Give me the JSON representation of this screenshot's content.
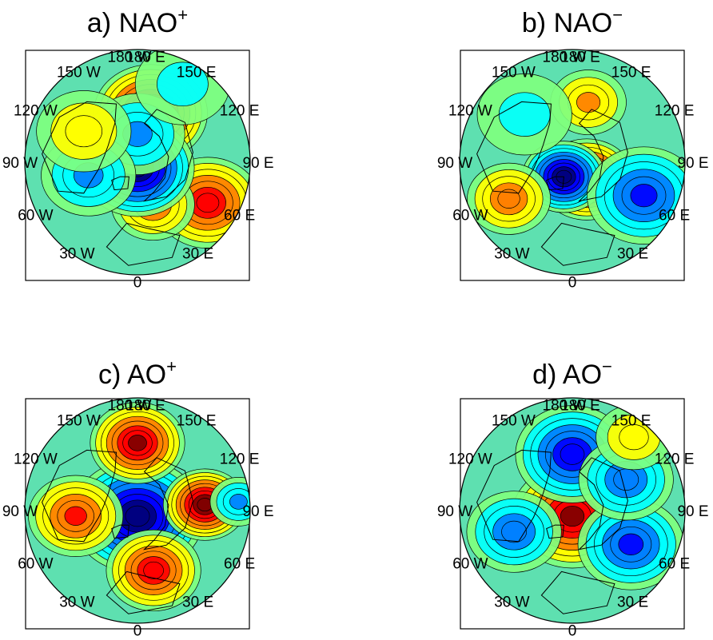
{
  "figure": {
    "palette": [
      "#00007f",
      "#0000ff",
      "#007fff",
      "#00ffff",
      "#7fff7f",
      "#ffff00",
      "#ff7f00",
      "#ff0000",
      "#7f0000"
    ],
    "background_color": "#5ee0b0",
    "panels": [
      {
        "id": "a",
        "title_prefix": "a) NAO",
        "title_sup": "+",
        "lon_labels": [
          "180 W",
          "180 E",
          "150 W",
          "150 E",
          "120 W",
          "120 E",
          "90 W",
          "90 E",
          "60 W",
          "60 E",
          "30 W",
          "30 E",
          "0"
        ],
        "anomalies": [
          {
            "lon": 165,
            "colat": 0.45,
            "value": 0.95,
            "spread": 0.3
          },
          {
            "lon": 60,
            "colat": 0.72,
            "value": 0.75,
            "spread": 0.28
          },
          {
            "lon": 20,
            "colat": 0.4,
            "value": 0.55,
            "spread": 0.22
          },
          {
            "lon": 0,
            "colat": 0.05,
            "value": -1.0,
            "spread": 0.3
          },
          {
            "lon": 180,
            "colat": 0.25,
            "value": -0.45,
            "spread": 0.25
          },
          {
            "lon": -75,
            "colat": 0.45,
            "value": -0.45,
            "spread": 0.25
          },
          {
            "lon": -120,
            "colat": 0.55,
            "value": 0.3,
            "spread": 0.25
          },
          {
            "lon": 150,
            "colat": 0.8,
            "value": -0.25,
            "spread": 0.25
          }
        ]
      },
      {
        "id": "b",
        "title_prefix": "b) NAO",
        "title_sup": "−",
        "lon_labels": [
          "180 W",
          "180 E",
          "150 W",
          "150 E",
          "120 W",
          "120 E",
          "90 W",
          "90 E",
          "60 W",
          "60 E",
          "30 W",
          "30 E",
          "0"
        ],
        "anomalies": [
          {
            "lon": 40,
            "colat": 0.2,
            "value": 0.95,
            "spread": 0.25
          },
          {
            "lon": -30,
            "colat": 0.15,
            "value": -1.0,
            "spread": 0.22
          },
          {
            "lon": 65,
            "colat": 0.7,
            "value": -0.65,
            "spread": 0.3
          },
          {
            "lon": 165,
            "colat": 0.55,
            "value": 0.4,
            "spread": 0.2
          },
          {
            "lon": -60,
            "colat": 0.65,
            "value": 0.55,
            "spread": 0.22
          },
          {
            "lon": -135,
            "colat": 0.6,
            "value": -0.2,
            "spread": 0.25
          }
        ]
      },
      {
        "id": "c",
        "title_prefix": "c) AO",
        "title_sup": "+",
        "lon_labels": [
          "180 W",
          "180 E",
          "150 W",
          "150 E",
          "120 W",
          "120 E",
          "90 W",
          "90 E",
          "60 W",
          "60 E",
          "30 W",
          "30 E",
          "0"
        ],
        "anomalies": [
          {
            "lon": 0,
            "colat": 0.05,
            "value": -1.0,
            "spread": 0.35
          },
          {
            "lon": 180,
            "colat": 0.6,
            "value": 0.9,
            "spread": 0.25
          },
          {
            "lon": 95,
            "colat": 0.6,
            "value": 0.95,
            "spread": 0.22
          },
          {
            "lon": 15,
            "colat": 0.55,
            "value": 0.8,
            "spread": 0.25
          },
          {
            "lon": -85,
            "colat": 0.55,
            "value": 0.65,
            "spread": 0.25
          },
          {
            "lon": 95,
            "colat": 0.9,
            "value": -0.45,
            "spread": 0.15
          }
        ]
      },
      {
        "id": "d",
        "title_prefix": "d) AO",
        "title_sup": "−",
        "lon_labels": [
          "180 W",
          "180 E",
          "150 W",
          "150 E",
          "120 W",
          "120 E",
          "90 W",
          "90 E",
          "60 W",
          "60 E",
          "30 W",
          "30 E",
          "0"
        ],
        "anomalies": [
          {
            "lon": 0,
            "colat": 0.05,
            "value": 0.9,
            "spread": 0.32
          },
          {
            "lon": 180,
            "colat": 0.5,
            "value": -0.8,
            "spread": 0.3
          },
          {
            "lon": 60,
            "colat": 0.6,
            "value": -0.7,
            "spread": 0.28
          },
          {
            "lon": 120,
            "colat": 0.55,
            "value": -0.55,
            "spread": 0.25
          },
          {
            "lon": -70,
            "colat": 0.55,
            "value": -0.5,
            "spread": 0.25
          },
          {
            "lon": 140,
            "colat": 0.85,
            "value": 0.3,
            "spread": 0.2
          }
        ]
      }
    ]
  }
}
